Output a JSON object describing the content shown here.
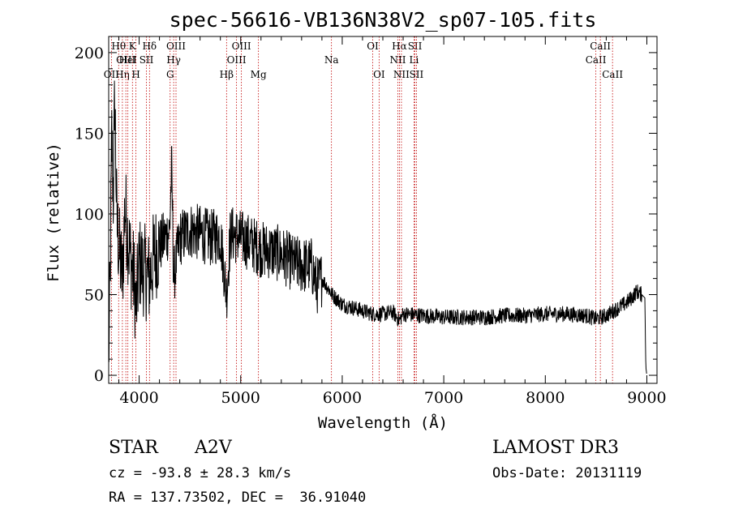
{
  "chart_data": {
    "type": "line",
    "title": "spec-56616-VB136N38V2_sp07-105.fits",
    "xlabel": "Wavelength (Å)",
    "ylabel": "Flux (relative)",
    "xlim": [
      3700,
      9100
    ],
    "ylim": [
      -5,
      210
    ],
    "xticks": [
      4000,
      5000,
      6000,
      7000,
      8000,
      9000
    ],
    "yticks": [
      0,
      50,
      100,
      150,
      200
    ],
    "xticks_minor_step": 200,
    "yticks_minor_step": 10,
    "spectrum_anchors": [
      [
        3700,
        10
      ],
      [
        3715,
        60
      ],
      [
        3730,
        150
      ],
      [
        3745,
        110
      ],
      [
        3760,
        175
      ],
      [
        3780,
        95
      ],
      [
        3800,
        80
      ],
      [
        3835,
        60
      ],
      [
        3860,
        105
      ],
      [
        3890,
        85
      ],
      [
        3920,
        70
      ],
      [
        3950,
        60
      ],
      [
        3970,
        40
      ],
      [
        4000,
        70
      ],
      [
        4050,
        65
      ],
      [
        4100,
        60
      ],
      [
        4150,
        75
      ],
      [
        4200,
        80
      ],
      [
        4250,
        85
      ],
      [
        4300,
        90
      ],
      [
        4320,
        130
      ],
      [
        4340,
        60
      ],
      [
        4400,
        85
      ],
      [
        4500,
        90
      ],
      [
        4600,
        88
      ],
      [
        4700,
        85
      ],
      [
        4800,
        87
      ],
      [
        4861,
        50
      ],
      [
        4900,
        88
      ],
      [
        5000,
        85
      ],
      [
        5100,
        82
      ],
      [
        5200,
        78
      ],
      [
        5300,
        77
      ],
      [
        5400,
        75
      ],
      [
        5500,
        70
      ],
      [
        5600,
        68
      ],
      [
        5700,
        68
      ],
      [
        5750,
        55
      ],
      [
        5800,
        60
      ],
      [
        5900,
        50
      ],
      [
        6000,
        44
      ],
      [
        6100,
        42
      ],
      [
        6200,
        40
      ],
      [
        6300,
        38
      ],
      [
        6400,
        38
      ],
      [
        6500,
        39
      ],
      [
        6563,
        34
      ],
      [
        6600,
        38
      ],
      [
        6800,
        37
      ],
      [
        7000,
        36
      ],
      [
        7200,
        36
      ],
      [
        7400,
        36
      ],
      [
        7600,
        37
      ],
      [
        7800,
        37
      ],
      [
        8000,
        38
      ],
      [
        8200,
        38
      ],
      [
        8400,
        37
      ],
      [
        8500,
        35
      ],
      [
        8600,
        37
      ],
      [
        8700,
        41
      ],
      [
        8800,
        45
      ],
      [
        8850,
        48
      ],
      [
        8900,
        52
      ],
      [
        8950,
        50
      ],
      [
        8980,
        48
      ],
      [
        8990,
        5
      ],
      [
        9000,
        0
      ]
    ],
    "noise_amplitude_blue": 30,
    "noise_amplitude_red": 5,
    "spectral_lines": [
      {
        "name": "OII",
        "wavelength": 3727,
        "row": 2
      },
      {
        "name": "Hθ",
        "wavelength": 3798,
        "row": 0
      },
      {
        "name": "Hη",
        "wavelength": 3835,
        "row": 2
      },
      {
        "name": "OIII",
        "wavelength": 3869,
        "row": 1
      },
      {
        "name": "HeI",
        "wavelength": 3889,
        "row": 1
      },
      {
        "name": "K",
        "wavelength": 3934,
        "row": 0
      },
      {
        "name": "H",
        "wavelength": 3968,
        "row": 2
      },
      {
        "name": "SII",
        "wavelength": 4072,
        "row": 1
      },
      {
        "name": "Hδ",
        "wavelength": 4102,
        "row": 0
      },
      {
        "name": "G",
        "wavelength": 4305,
        "row": 2
      },
      {
        "name": "Hγ",
        "wavelength": 4340,
        "row": 1
      },
      {
        "name": "OIII",
        "wavelength": 4363,
        "row": 0
      },
      {
        "name": "Hβ",
        "wavelength": 4861,
        "row": 2
      },
      {
        "name": "OIII",
        "wavelength": 4959,
        "row": 1
      },
      {
        "name": "OIII",
        "wavelength": 5007,
        "row": 0
      },
      {
        "name": "Mg",
        "wavelength": 5175,
        "row": 2
      },
      {
        "name": "Na",
        "wavelength": 5894,
        "row": 1
      },
      {
        "name": "OI",
        "wavelength": 6300,
        "row": 0
      },
      {
        "name": "OI",
        "wavelength": 6363,
        "row": 2
      },
      {
        "name": "NII",
        "wavelength": 6548,
        "row": 1
      },
      {
        "name": "Hα",
        "wavelength": 6563,
        "row": 0
      },
      {
        "name": "NII",
        "wavelength": 6583,
        "row": 2
      },
      {
        "name": "Li",
        "wavelength": 6707,
        "row": 1
      },
      {
        "name": "SII",
        "wavelength": 6716,
        "row": 0
      },
      {
        "name": "SII",
        "wavelength": 6731,
        "row": 2
      },
      {
        "name": "CaII",
        "wavelength": 8498,
        "row": 1
      },
      {
        "name": "CaII",
        "wavelength": 8542,
        "row": 0
      },
      {
        "name": "CaII",
        "wavelength": 8662,
        "row": 2
      }
    ],
    "colors": {
      "spectrum": "#000000",
      "line_markers": "#c00000"
    }
  },
  "info": {
    "object_class": "STAR",
    "subclass": "A2V",
    "survey": "LAMOST DR3",
    "cz": "cz = -93.8 ± 28.3 km/s",
    "obs_date": "Obs-Date: 20131119",
    "coords": "RA = 137.73502, DEC =  36.91040"
  }
}
